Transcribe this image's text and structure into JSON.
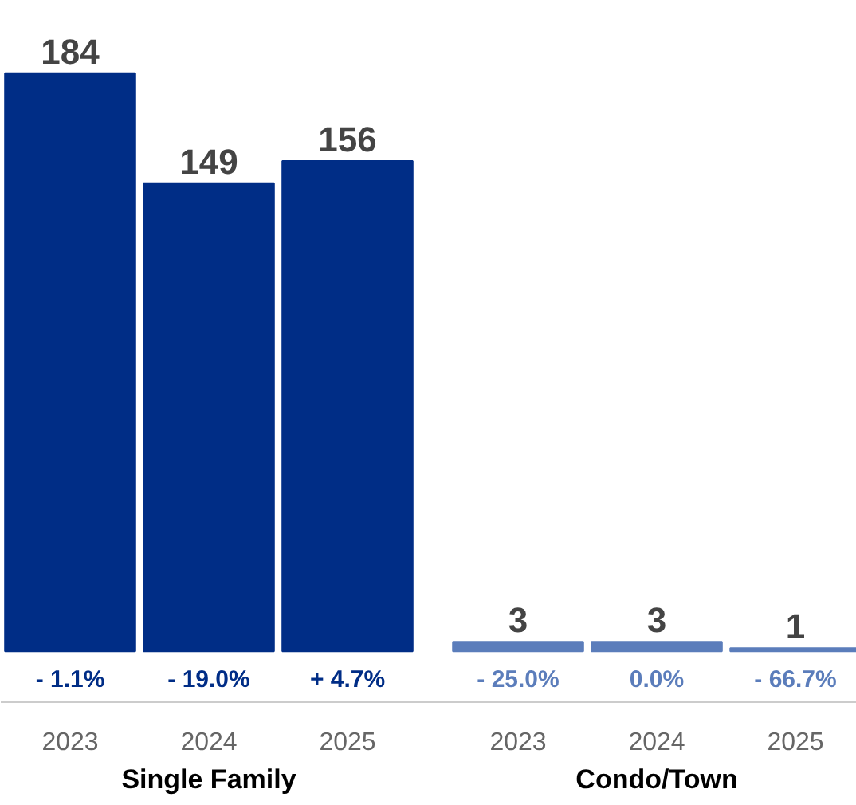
{
  "chart_data": {
    "type": "bar",
    "categories": [
      "2023",
      "2024",
      "2025",
      "2023",
      "2024",
      "2025"
    ],
    "values": [
      184,
      149,
      156,
      3,
      3,
      1
    ],
    "colors": [
      "#002d86",
      "#002d86",
      "#002d86",
      "#5b7dbb",
      "#5b7dbb",
      "#5b7dbb"
    ],
    "data_labels": true,
    "annotations": [
      "- 1.1%",
      "- 19.0%",
      "+ 4.7%",
      "- 25.0%",
      "0.0%",
      "- 66.7%",
      "Single Family",
      "Condo/Town"
    ],
    "grid": false
  }
}
